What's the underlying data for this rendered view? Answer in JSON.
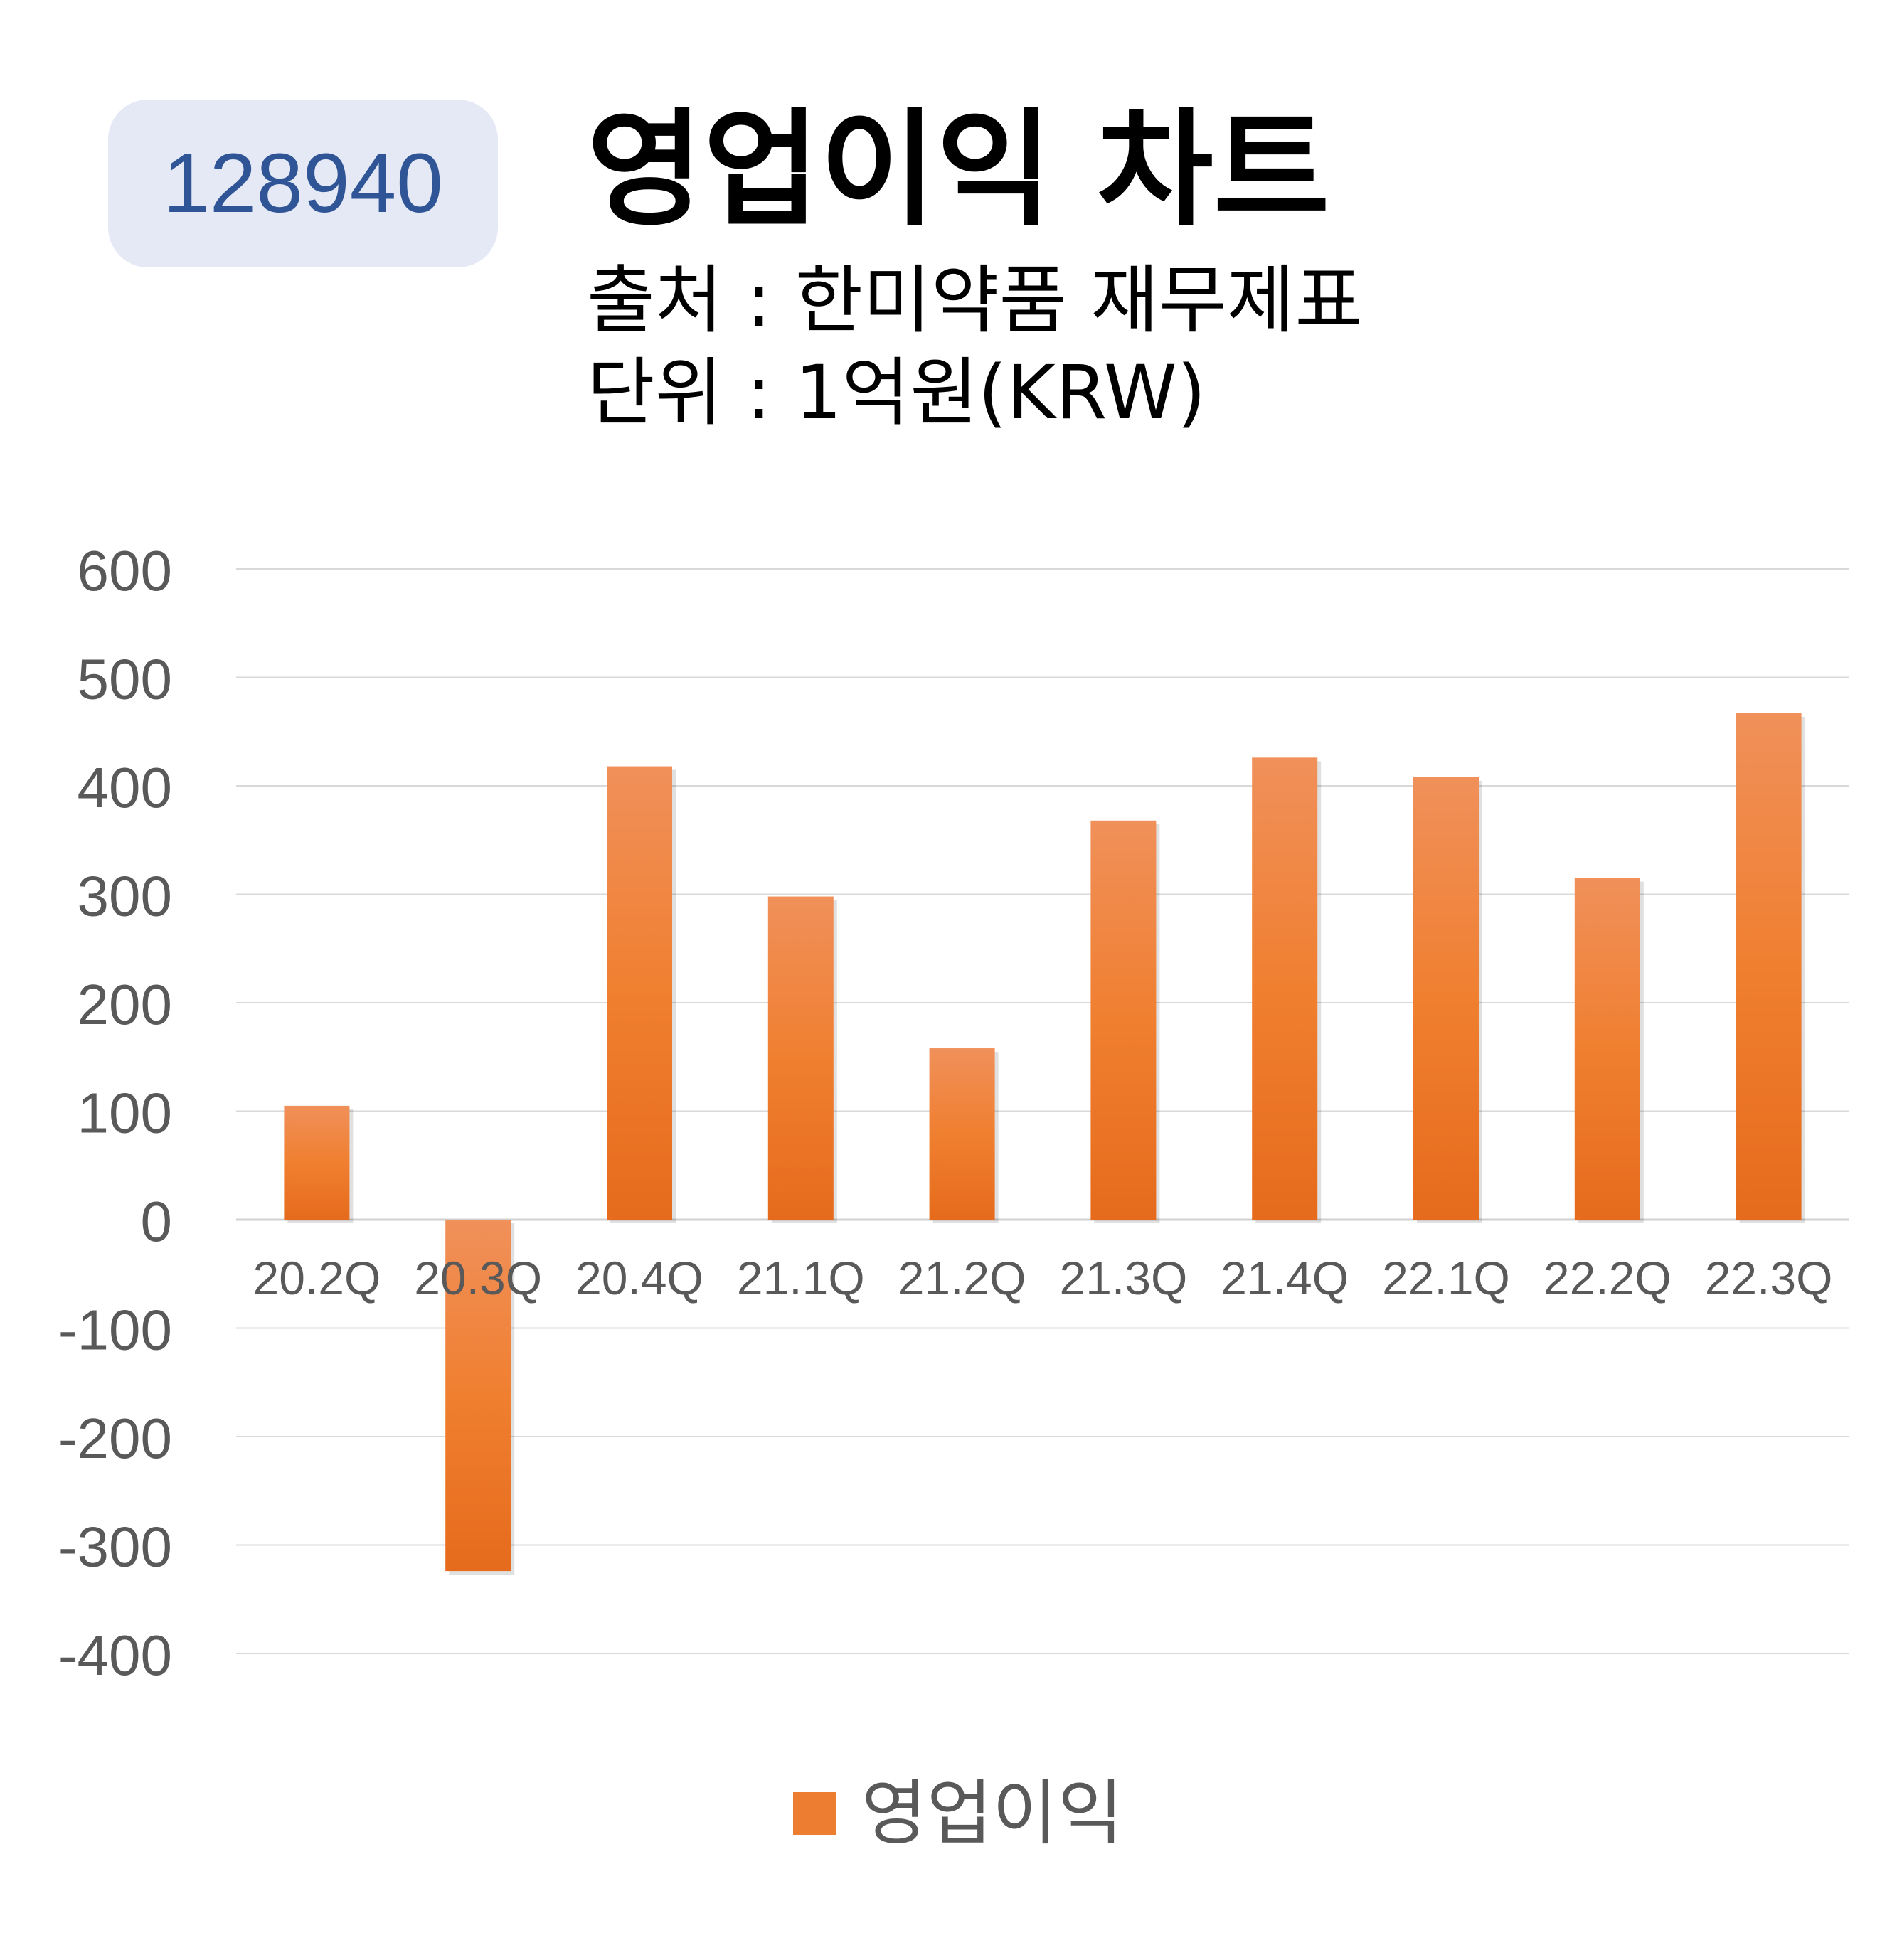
{
  "header": {
    "stock_code": "128940",
    "title": "영업이익 차트",
    "source_line": "출처 : 한미약품 재무제표",
    "unit_line": "단위 : 1억원(KRW)"
  },
  "chart_data": {
    "type": "bar",
    "title": "영업이익 차트",
    "categories": [
      "20.2Q",
      "20.3Q",
      "20.4Q",
      "21.1Q",
      "21.2Q",
      "21.3Q",
      "21.4Q",
      "22.1Q",
      "22.2Q",
      "22.3Q"
    ],
    "series": [
      {
        "name": "영업이익",
        "values": [
          105,
          -324,
          418,
          298,
          158,
          368,
          426,
          408,
          315,
          467
        ],
        "color": "#ed7d31"
      }
    ],
    "yticks": [
      600,
      500,
      400,
      300,
      200,
      100,
      0,
      -100,
      -200,
      -300,
      -400
    ],
    "ylim": [
      -400,
      600
    ],
    "grid": true,
    "legend": "bottom"
  }
}
